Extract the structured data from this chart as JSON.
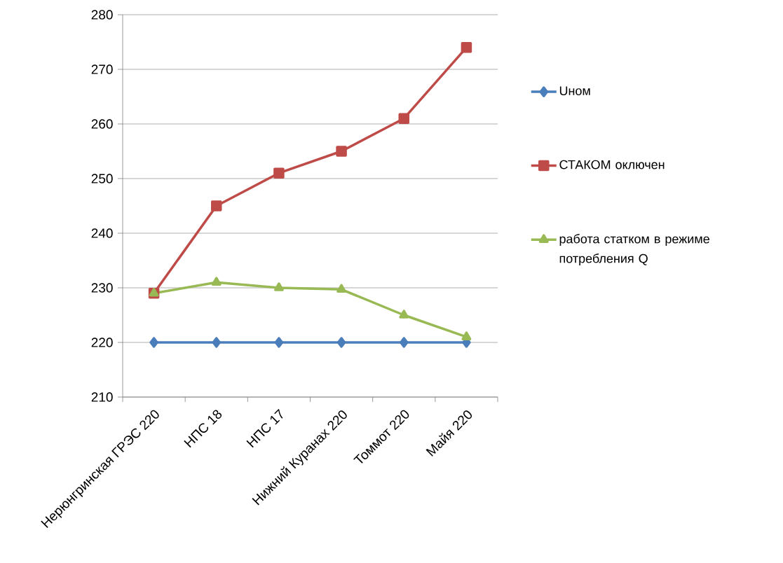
{
  "chart_data": {
    "type": "line",
    "categories": [
      "Нерюнгринская ГРЭС 220",
      "НПС 18",
      "НПС 17",
      "Нижний Куранах 220",
      "Томмот 220",
      "Майя 220"
    ],
    "series": [
      {
        "name": "Uном",
        "color": "#4a7ebb",
        "marker": "diamond",
        "values": [
          220,
          220,
          220,
          220,
          220,
          220
        ]
      },
      {
        "name": "СТАКОМ оключен",
        "color": "#be4b48",
        "marker": "square",
        "values": [
          229,
          245,
          251,
          255,
          261,
          274
        ]
      },
      {
        "name": "работа статком в режиме потребления Q",
        "color": "#98b954",
        "marker": "triangle",
        "values": [
          229,
          231,
          230,
          229.7,
          225,
          221
        ]
      }
    ],
    "ylim": [
      210,
      280
    ],
    "yticks": [
      210,
      220,
      230,
      240,
      250,
      260,
      270,
      280
    ],
    "grid": "y",
    "legend": "right",
    "line_style": "solid"
  }
}
